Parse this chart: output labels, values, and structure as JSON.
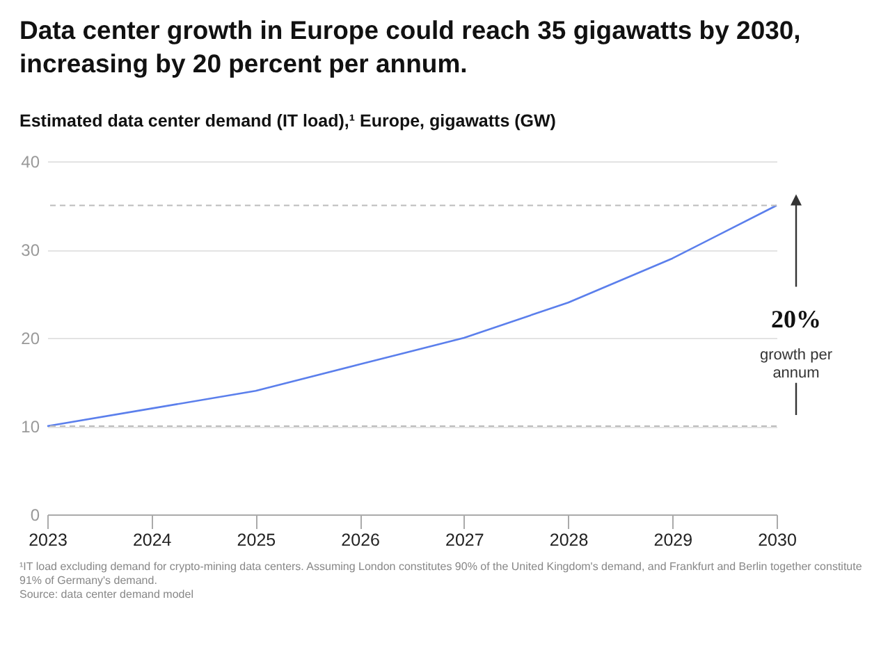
{
  "chart_data": {
    "type": "line",
    "title": "Data center growth in Europe could reach 35 gigawatts by 2030, increasing by 20 percent per annum.",
    "subtitle": "Estimated data center demand (IT load),¹ Europe, gigawatts (GW)",
    "categories": [
      "2023",
      "2024",
      "2025",
      "2026",
      "2027",
      "2028",
      "2029",
      "2030"
    ],
    "series": [
      {
        "color": "#5b7fec",
        "values": [
          10,
          12,
          14,
          17,
          20,
          24,
          29,
          35
        ]
      }
    ],
    "ylim": [
      0,
      40
    ],
    "yticks": [
      0,
      10,
      20,
      30,
      40
    ],
    "grid": "y",
    "marker": "none",
    "line_style": "solid",
    "ref_lines": [
      {
        "axis": "y",
        "value": 10,
        "color": "#bbbbbb",
        "line_style": "dashed"
      },
      {
        "axis": "y",
        "value": 35,
        "color": "#bbbbbb",
        "line_style": "dashed"
      }
    ],
    "annotations": [
      "20%",
      "growth per annum",
      "¹IT load excluding demand for crypto-mining data centers. Assuming London constitutes 90% of the United Kingdom's demand, and Frankfurt and Berlin together constitute 91% of Germany's demand.",
      "Source: data center demand model"
    ]
  }
}
